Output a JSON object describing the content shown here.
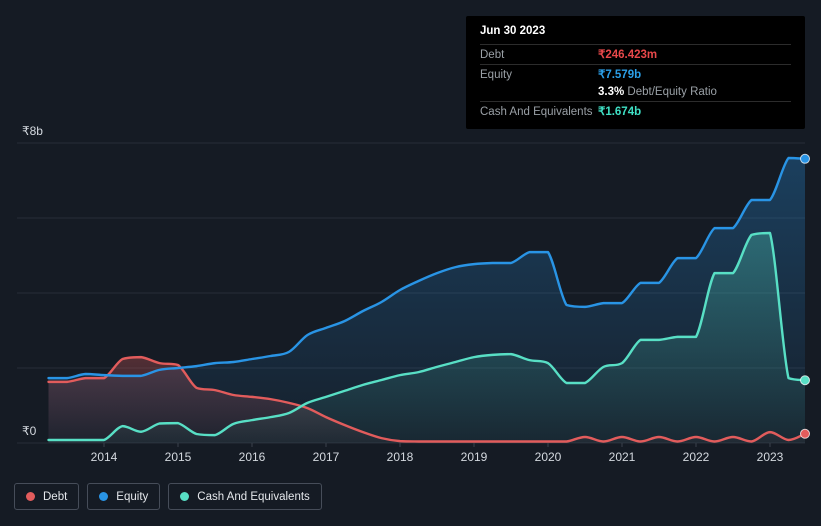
{
  "tooltip": {
    "date": "Jun 30 2023",
    "debt_label": "Debt",
    "debt_value": "₹246.423m",
    "equity_label": "Equity",
    "equity_value": "₹7.579b",
    "ratio_value": "3.3%",
    "ratio_label": "Debt/Equity Ratio",
    "cash_label": "Cash And Equivalents",
    "cash_value": "₹1.674b"
  },
  "colors": {
    "background": "#151b24",
    "tooltip_bg": "#000000",
    "grid": "#262d37",
    "axis_text": "#d4d9df",
    "debt": "#e25c5c",
    "equity": "#2994e5",
    "cash": "#58dfc5",
    "debt_value_text": "#e8484a",
    "equity_value_text": "#2b9fe8",
    "cash_value_text": "#3fe0c5"
  },
  "legend": {
    "items": [
      {
        "label": "Debt",
        "color": "#e25c5c"
      },
      {
        "label": "Equity",
        "color": "#2994e5"
      },
      {
        "label": "Cash And Equivalents",
        "color": "#58dfc5"
      }
    ]
  },
  "chart_data": {
    "type": "area",
    "title": "",
    "x_unit": "year (quarterly data points)",
    "x": [
      2013.25,
      2013.5,
      2013.75,
      2014,
      2014.25,
      2014.5,
      2014.75,
      2015,
      2015.25,
      2015.5,
      2015.75,
      2016,
      2016.25,
      2016.5,
      2016.75,
      2017,
      2017.25,
      2017.5,
      2017.75,
      2018,
      2018.25,
      2018.5,
      2018.75,
      2019,
      2019.25,
      2019.5,
      2019.75,
      2020,
      2020.25,
      2020.5,
      2020.75,
      2021,
      2021.25,
      2021.5,
      2021.75,
      2022,
      2022.25,
      2022.5,
      2022.75,
      2023,
      2023.25,
      2023.5
    ],
    "series": [
      {
        "name": "Debt",
        "color": "#e25c5c",
        "values": [
          1.63,
          1.63,
          1.73,
          1.73,
          2.24,
          2.29,
          2.13,
          2.08,
          1.47,
          1.41,
          1.28,
          1.23,
          1.17,
          1.07,
          0.93,
          0.69,
          0.48,
          0.29,
          0.13,
          0.05,
          0.04,
          0.04,
          0.04,
          0.04,
          0.04,
          0.04,
          0.04,
          0.04,
          0.04,
          0.16,
          0.04,
          0.16,
          0.04,
          0.16,
          0.04,
          0.16,
          0.04,
          0.16,
          0.04,
          0.29,
          0.08,
          0.246
        ]
      },
      {
        "name": "Equity",
        "color": "#2994e5",
        "values": [
          1.73,
          1.73,
          1.84,
          1.81,
          1.79,
          1.79,
          1.95,
          2.0,
          2.05,
          2.13,
          2.16,
          2.24,
          2.32,
          2.43,
          2.88,
          3.07,
          3.25,
          3.52,
          3.76,
          4.08,
          4.32,
          4.53,
          4.69,
          4.77,
          4.8,
          4.8,
          5.09,
          5.09,
          3.68,
          3.63,
          3.73,
          3.73,
          4.27,
          4.27,
          4.93,
          4.93,
          5.73,
          5.73,
          6.48,
          6.48,
          7.6,
          7.579
        ]
      },
      {
        "name": "Cash And Equivalents",
        "color": "#58dfc5",
        "values": [
          0.08,
          0.08,
          0.08,
          0.08,
          0.45,
          0.3,
          0.52,
          0.53,
          0.24,
          0.21,
          0.51,
          0.61,
          0.69,
          0.8,
          1.07,
          1.23,
          1.39,
          1.55,
          1.68,
          1.81,
          1.89,
          2.03,
          2.16,
          2.29,
          2.35,
          2.37,
          2.21,
          2.13,
          1.6,
          1.6,
          2.03,
          2.13,
          2.75,
          2.75,
          2.83,
          2.83,
          4.53,
          4.53,
          5.55,
          5.6,
          1.73,
          1.674
        ]
      }
    ],
    "y_axis": {
      "min": 0,
      "max": 8,
      "tick_labels": [
        "₹8b",
        "₹0"
      ],
      "grid_values": [
        0,
        2,
        4,
        6,
        8
      ]
    },
    "x_ticks": [
      2014,
      2015,
      2016,
      2017,
      2018,
      2019,
      2020,
      2021,
      2022,
      2023
    ],
    "legend_position": "bottom",
    "end_markers": true
  }
}
